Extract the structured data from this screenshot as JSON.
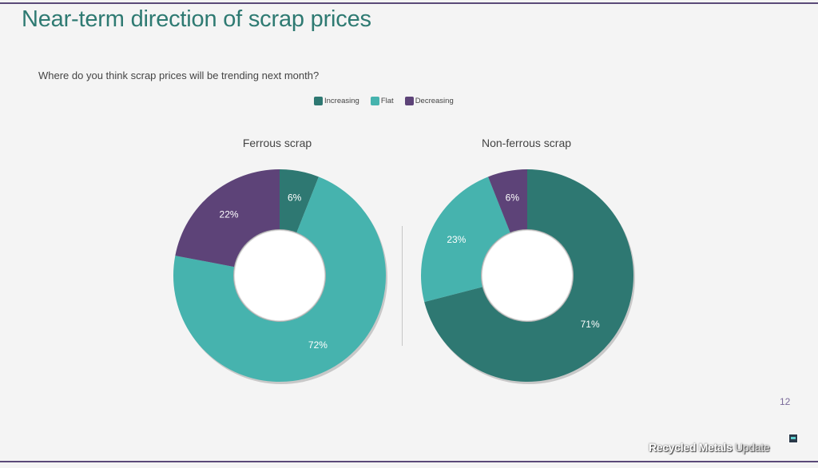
{
  "title": "Near-term direction of scrap prices",
  "question": "Where do you think scrap prices will be trending next month?",
  "legend": [
    {
      "label": "Increasing",
      "color": "#2e7872"
    },
    {
      "label": "Flat",
      "color": "#46b3ae"
    },
    {
      "label": "Decreasing",
      "color": "#5d4378"
    }
  ],
  "page_number": "12",
  "footer": {
    "brand_bold": "Recycled Metals",
    "brand_light": "Update"
  },
  "chart_data": [
    {
      "type": "pie",
      "donut": true,
      "title": "Ferrous scrap",
      "categories": [
        "Increasing",
        "Flat",
        "Decreasing"
      ],
      "values": [
        6,
        72,
        22
      ],
      "labels": [
        "6%",
        "72%",
        "22%"
      ],
      "colors": [
        "#2e7872",
        "#46b3ae",
        "#5d4378"
      ]
    },
    {
      "type": "pie",
      "donut": true,
      "title": "Non-ferrous scrap",
      "categories": [
        "Increasing",
        "Flat",
        "Decreasing"
      ],
      "values": [
        71,
        23,
        6
      ],
      "labels": [
        "71%",
        "23%",
        "6%"
      ],
      "colors": [
        "#2e7872",
        "#46b3ae",
        "#5d4378"
      ]
    }
  ]
}
